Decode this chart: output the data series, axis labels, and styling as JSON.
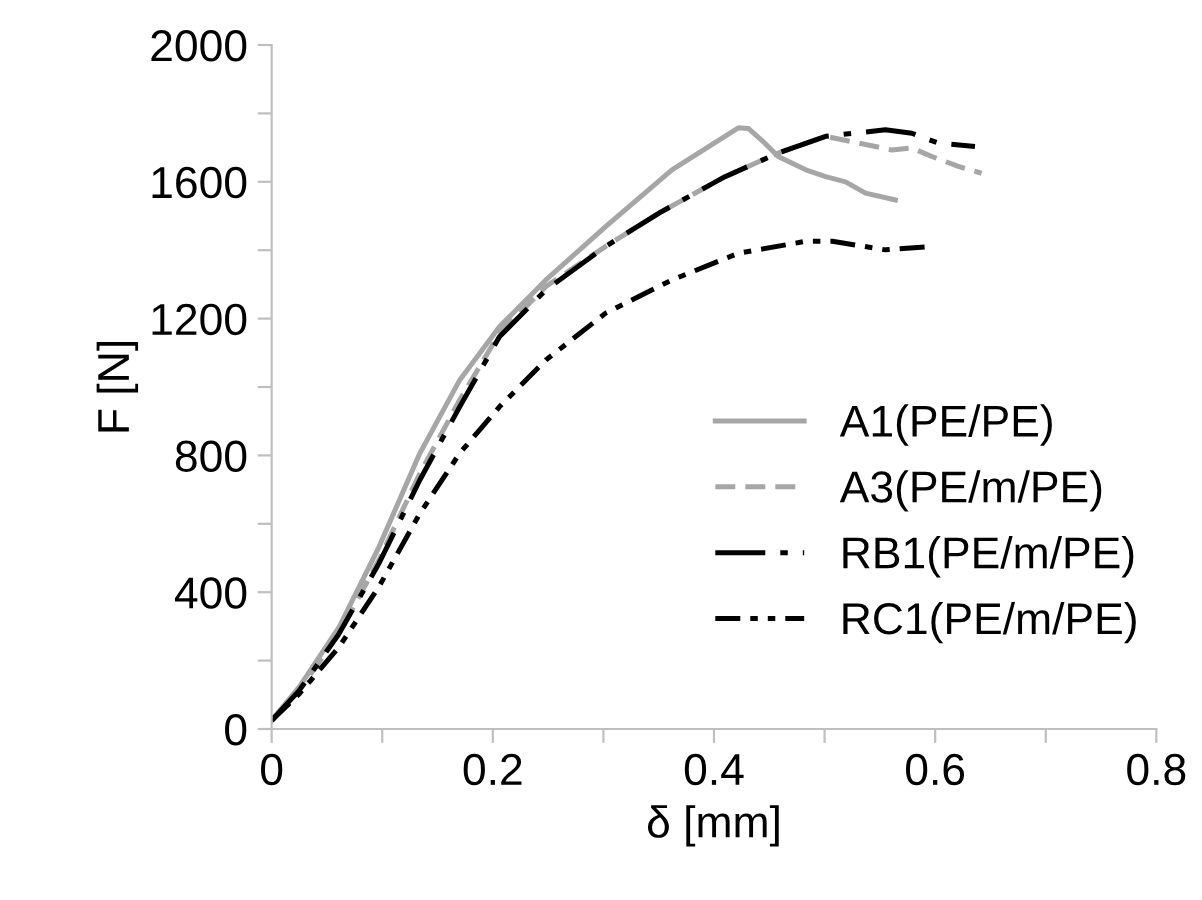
{
  "chart_data": {
    "type": "line",
    "xlabel": "δ [mm]",
    "ylabel": "F [N]",
    "xlim": [
      0,
      0.8
    ],
    "ylim": [
      0,
      2000
    ],
    "xticks": [
      0,
      {
        "value": 0.1,
        "label": null
      },
      0.2,
      {
        "value": 0.3,
        "label": null
      },
      0.4,
      {
        "value": 0.5,
        "label": null
      },
      0.6,
      {
        "value": 0.7,
        "label": null
      },
      0.8
    ],
    "yticks": [
      0,
      {
        "value": 200,
        "label": null
      },
      400,
      {
        "value": 600,
        "label": null
      },
      800,
      {
        "value": 1000,
        "label": null
      },
      1200,
      {
        "value": 1400,
        "label": null
      },
      1600,
      {
        "value": 1800,
        "label": null
      },
      2000
    ],
    "grid": false,
    "legend": "right",
    "marker": "none",
    "series": [
      {
        "name": "A1(PE/PE)",
        "color": "#a6a6a6",
        "line_style": "solid",
        "x": [
          0,
          0.025,
          0.061,
          0.097,
          0.134,
          0.17,
          0.206,
          0.248,
          0.302,
          0.362,
          0.422,
          0.431,
          0.446,
          0.458,
          0.483,
          0.501,
          0.519,
          0.537,
          0.564
        ],
        "values": [
          25,
          123,
          298,
          532,
          806,
          1020,
          1176,
          1313,
          1469,
          1635,
          1758,
          1756,
          1713,
          1674,
          1635,
          1615,
          1600,
          1567,
          1547
        ]
      },
      {
        "name": "A3(PE/m/PE)",
        "color": "#a6a6a6",
        "line_style": "dashed",
        "x": [
          0,
          0.025,
          0.061,
          0.097,
          0.134,
          0.17,
          0.206,
          0.248,
          0.302,
          0.35,
          0.41,
          0.458,
          0.501,
          0.531,
          0.561,
          0.579,
          0.597,
          0.621,
          0.642
        ],
        "values": [
          25,
          113,
          279,
          494,
          747,
          962,
          1157,
          1294,
          1411,
          1508,
          1615,
          1684,
          1733,
          1713,
          1693,
          1699,
          1674,
          1645,
          1625
        ]
      },
      {
        "name": "RB1(PE/m/PE)",
        "color": "#000000",
        "line_style": "dashdot",
        "x": [
          0,
          0.025,
          0.061,
          0.097,
          0.134,
          0.17,
          0.206,
          0.248,
          0.302,
          0.35,
          0.41,
          0.458,
          0.501,
          0.555,
          0.579,
          0.603,
          0.636
        ],
        "values": [
          25,
          113,
          279,
          484,
          728,
          942,
          1147,
          1284,
          1411,
          1508,
          1615,
          1684,
          1733,
          1752,
          1742,
          1713,
          1703
        ]
      },
      {
        "name": "RC1(PE/m/PE)",
        "color": "#000000",
        "line_style": "dashdotdot",
        "x": [
          0,
          0.025,
          0.061,
          0.097,
          0.134,
          0.17,
          0.206,
          0.248,
          0.302,
          0.362,
          0.422,
          0.483,
          0.507,
          0.555,
          0.597
        ],
        "values": [
          25,
          103,
          240,
          416,
          630,
          806,
          942,
          1079,
          1216,
          1313,
          1391,
          1426,
          1426,
          1401,
          1411
        ]
      }
    ]
  }
}
